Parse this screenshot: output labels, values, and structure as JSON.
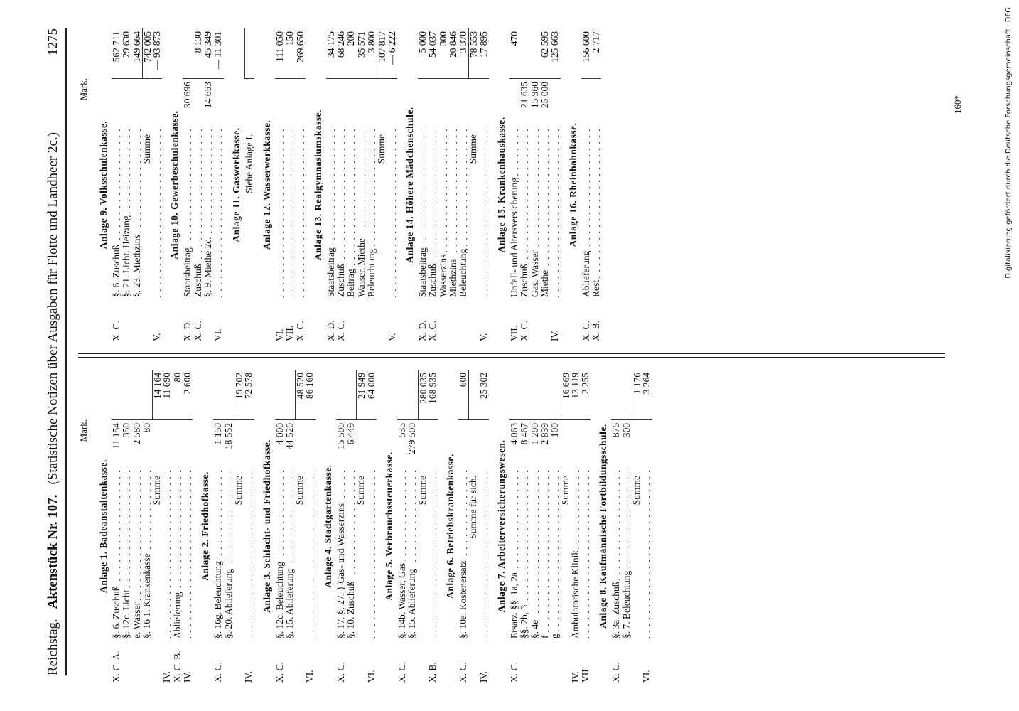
{
  "header": {
    "left": "Reichstag.",
    "docno": "Aktenstück Nr. 107.",
    "title": "(Statistische Notizen über Ausgaben für Flotte und Landheer 2c.)",
    "page": "1275"
  },
  "left": {
    "unit": "Mark.",
    "sections": [
      {
        "title": "Anlage 1. Badeanstaltenkasse.",
        "rows": [
          {
            "code": "X. C. A.",
            "text": "§. 6. Zuschuß",
            "sub": "11 154"
          },
          {
            "text": "§. 12c. Licht",
            "sub": "350"
          },
          {
            "text": "e. Wasser",
            "sub": "2 580"
          },
          {
            "text": "§. 16 1. Krankenkasse",
            "sub": "80"
          },
          {
            "sum": "Summe",
            "total": "14 164"
          },
          {
            "code": "IV.",
            "total": "11 690"
          },
          {
            "code": "X. C. B.",
            "text": "Ablieferung",
            "total": "80"
          },
          {
            "code": "IV.",
            "total": "2 600"
          }
        ]
      },
      {
        "title": "Anlage 2. Friedhofkasse.",
        "rows": [
          {
            "code": "X. C.",
            "text": "§. 16g. Beleuchtung",
            "sub": "1 150"
          },
          {
            "text": "§. 20. Ablieferung",
            "sub": "18 552"
          },
          {
            "sum": "Summe",
            "total": "19 702"
          },
          {
            "code": "IV.",
            "total": "72 578"
          }
        ]
      },
      {
        "title": "Anlage 3. Schlacht- und Friedhofkasse.",
        "rows": [
          {
            "code": "X. C.",
            "text": "§. 12c. Beleuchtung",
            "sub": "4 000"
          },
          {
            "text": "§. 15. Ablieferung",
            "sub": "44 520"
          },
          {
            "sum": "Summe",
            "total": "48 520"
          },
          {
            "code": "VI.",
            "total": "86 160"
          }
        ]
      },
      {
        "title": "Anlage 4. Stadtgartenkasse.",
        "rows": [
          {
            "code": "X. C.",
            "text": "§. 17. §. 27. } Gas- und Wasserzins",
            "sub": "15 500"
          },
          {
            "text": "§. 10. Zuschuß",
            "sub": "6 449"
          },
          {
            "sum": "Summe",
            "total": "21 949"
          },
          {
            "code": "VI.",
            "total": "64 000"
          }
        ]
      },
      {
        "title": "Anlage 5. Verbrauchssteuerkasse.",
        "rows": [
          {
            "code": "X. C.",
            "text": "§. 14b. Wasser, Gas",
            "sub": "535"
          },
          {
            "text": "§. 15. Ablieferung",
            "sub": "279 500"
          },
          {
            "sum": "Summe",
            "total": "280 035"
          },
          {
            "code": "X. B.",
            "total": "108 935"
          }
        ]
      },
      {
        "title": "Anlage 6. Betriebskrankenkasse.",
        "rows": [
          {
            "code": "X. C.",
            "text": "§. 10a. Kostenersatz",
            "total": "600"
          },
          {
            "sum": "Summe für sich."
          },
          {
            "code": "IV.",
            "total": "25 302"
          }
        ]
      },
      {
        "title": "Anlage 7. Arbeiterversicherungswesen.",
        "rows": [
          {
            "code": "X. C.",
            "text": "Ersatz. §§. 1a, 2a",
            "sub": "4 063"
          },
          {
            "text": "§§. 2b, 3",
            "sub": "8 467"
          },
          {
            "text": "§. 4e",
            "sub": "1 200"
          },
          {
            "text": "f",
            "sub": "2 839"
          },
          {
            "text": "g",
            "sub": "100"
          },
          {
            "sum": "Summe",
            "total": "16 669"
          },
          {
            "code": "IV.",
            "text": "Ambulatorische Klinik",
            "total": "13 119"
          },
          {
            "code": "VII.",
            "total": "2 255"
          }
        ]
      },
      {
        "title": "Anlage 8. Kaufmännische Fortbildungsschule.",
        "rows": [
          {
            "code": "X. C.",
            "text": "§. 3a. Zuschuß",
            "sub": "876"
          },
          {
            "text": "§. 7. Beleuchtung",
            "sub": "300"
          },
          {
            "sum": "Summe",
            "total": "1 176"
          },
          {
            "code": "VI.",
            "total": "3 264"
          }
        ]
      }
    ]
  },
  "right": {
    "unit": "Mark.",
    "sections": [
      {
        "title": "Anlage 9. Volksschulenkasse.",
        "rows": [
          {
            "code": "X. C.",
            "text": "§. 6. Zuschuß",
            "total": "562 711"
          },
          {
            "text": "§. 21. Licht. Heizung",
            "total": "29 630"
          },
          {
            "text": "§. 23. Miethzins",
            "total": "149 664"
          },
          {
            "sum": "Summe",
            "total": "742 005"
          },
          {
            "code": "V.",
            "total": "— 93 873"
          }
        ]
      },
      {
        "title": "Anlage 10. Gewerbeschulenkasse.",
        "rows": [
          {
            "code": "X. D.",
            "text": "Staatsbeitrag",
            "sub": "30 696"
          },
          {
            "code": "X. C.",
            "text": "Zuschuß",
            "total": "8 130"
          },
          {
            "text": "§. 9. Miethe 2c.",
            "sub": "14 653",
            "total": "45 349"
          },
          {
            "code": "VI.",
            "total": "— 11 301"
          }
        ]
      },
      {
        "title": "Anlage 11. Gaswerkkasse.",
        "rows": [
          {
            "sum": "Siehe Anlage I."
          }
        ]
      },
      {
        "title": "Anlage 12. Wasserwerkkasse.",
        "rows": [
          {
            "code": "VI.",
            "total": "111 050"
          },
          {
            "code": "VII.",
            "total": "150"
          },
          {
            "code": "X. C.",
            "total": "269 650"
          }
        ]
      },
      {
        "title": "Anlage 13. Realgymnasiumskasse.",
        "rows": [
          {
            "code": "X. D.",
            "text": "Staatsbeitrag",
            "total": "34 175"
          },
          {
            "code": "X. C.",
            "text": "Zuschuß",
            "total": "68 246"
          },
          {
            "text": "Beitrag",
            "total": "200"
          },
          {
            "text": "Wasser. Miethe",
            "total": "35 571"
          },
          {
            "text": "Beleuchtung",
            "total": "3 800"
          },
          {
            "sum": "Summe",
            "total": "107 817"
          },
          {
            "code": "V.",
            "total": "— 6 222"
          }
        ]
      },
      {
        "title": "Anlage 14. Höhere Mädchenschule.",
        "rows": [
          {
            "code": "X. D.",
            "text": "Staatsbeitrag",
            "total": "5 000"
          },
          {
            "code": "X. C.",
            "text": "Zuschuß",
            "total": "54 037"
          },
          {
            "text": "Wasserzins",
            "total": "300"
          },
          {
            "text": "Miethzins",
            "total": "20 846"
          },
          {
            "text": "Beleuchtung",
            "total": "3 370"
          },
          {
            "sum": "Summe",
            "total": "78 553"
          },
          {
            "code": "V.",
            "total": "17 895"
          }
        ]
      },
      {
        "title": "Anlage 15. Krankenhauskasse.",
        "rows": [
          {
            "code": "VII.",
            "text": "Unfall- und Altersversicherung",
            "total": "470"
          },
          {
            "code": "X. C.",
            "text": "Zuschuß",
            "sub": "21 635"
          },
          {
            "text": "Gas. Wasser",
            "sub": "15 960"
          },
          {
            "text": "Miethe",
            "sub": "25 000",
            "total": "62 595"
          },
          {
            "code": "IV.",
            "total": "125 663"
          }
        ]
      },
      {
        "title": "Anlage 16. Rheinbahnkasse.",
        "rows": [
          {
            "code": "X. C.",
            "text": "Ablieferung",
            "total": "156 600"
          },
          {
            "code": "X. B.",
            "text": "Rest",
            "total": "2 717"
          }
        ]
      }
    ]
  },
  "footer": {
    "mark": "160*"
  },
  "sidebar": "Digitalisierung gefördert durch die Deutsche Forschungsgemeinschaft · DFG"
}
